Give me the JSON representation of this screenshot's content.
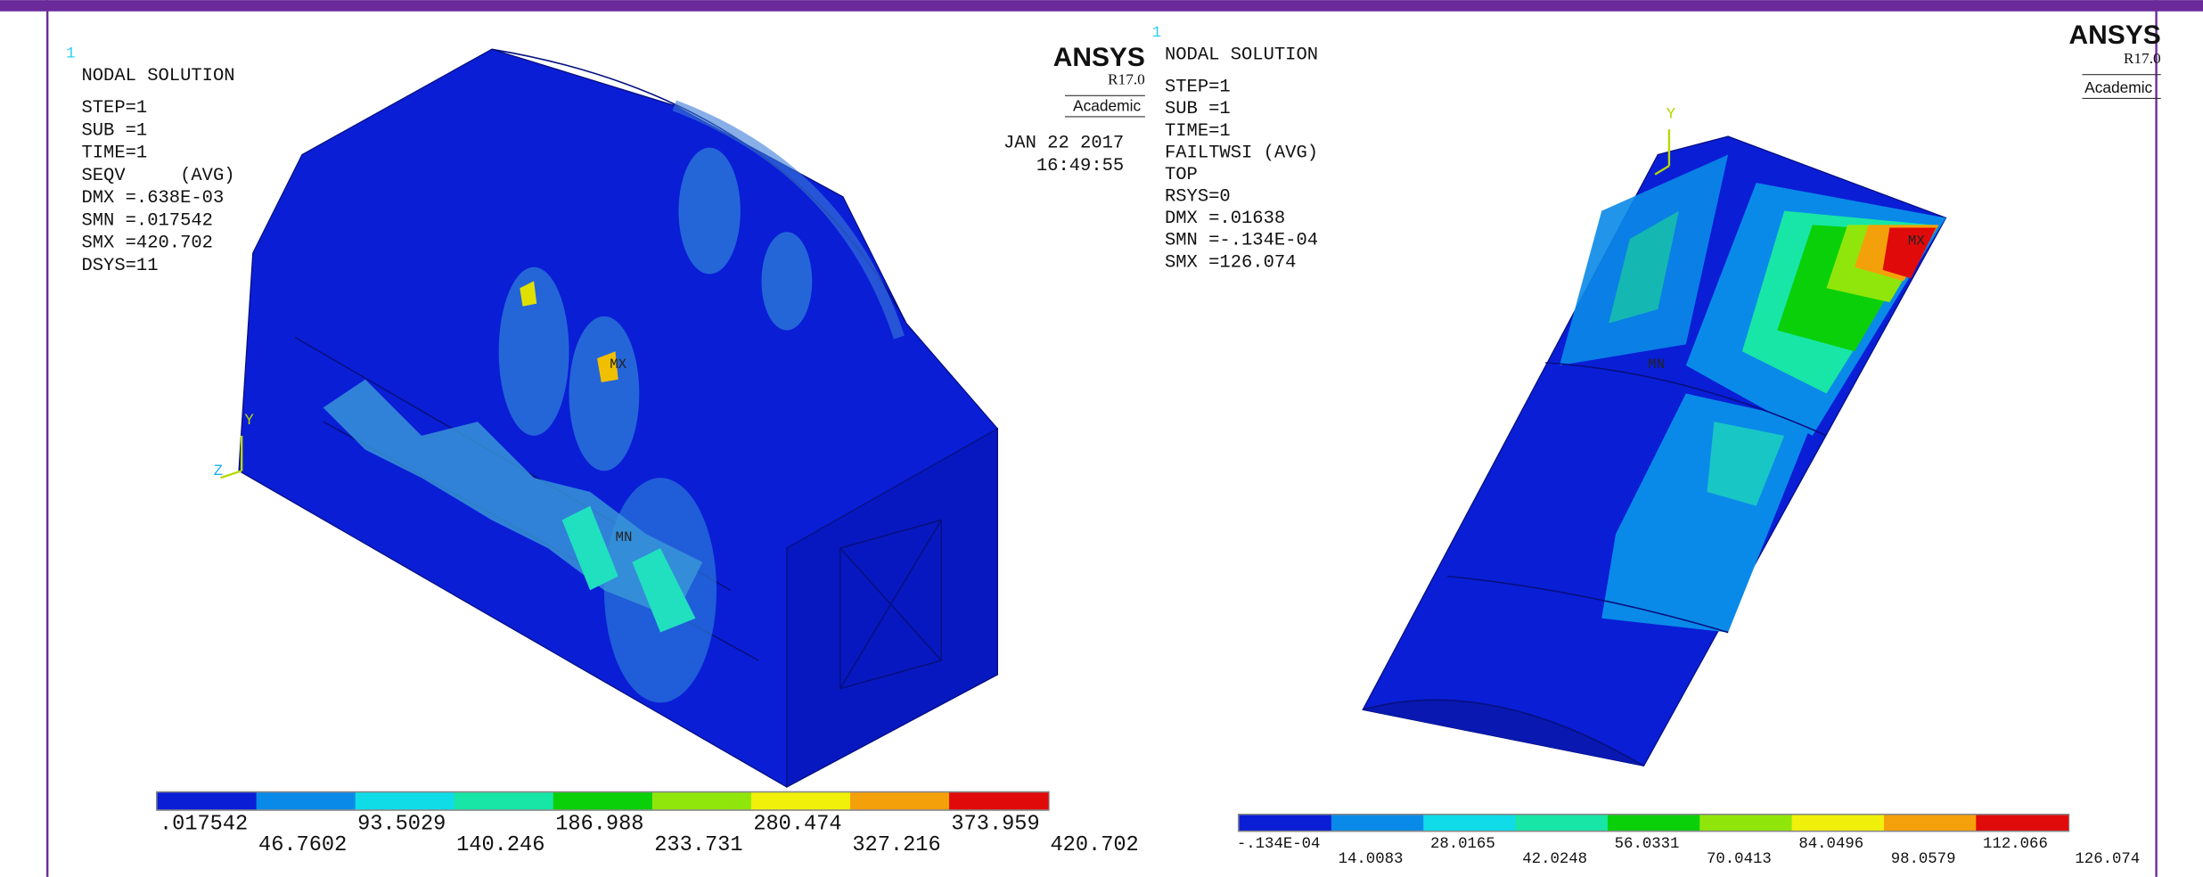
{
  "left_panel": {
    "marker": "1",
    "title": "NODAL SOLUTION",
    "lines": [
      "STEP=1",
      "SUB =1",
      "TIME=1",
      "SEQV     (AVG)",
      "DMX =.638E-03",
      "SMN =.017542",
      "SMX =420.702",
      "DSYS=11"
    ],
    "logo": {
      "name": "ANSYS",
      "version": "R17.0",
      "license": "Academic"
    },
    "date": "JAN 22 2017",
    "time": "16:49:55",
    "model_labels": {
      "max": "MX",
      "min": "MN",
      "y_axis": "Y",
      "z_axis": "Z"
    },
    "legend": {
      "colors": [
        "#0a1ed6",
        "#0a8ae8",
        "#10dce8",
        "#18e6a6",
        "#0ad00a",
        "#90e60a",
        "#f0f00a",
        "#f4a00a",
        "#e00a0a"
      ],
      "labels": [
        ".017542",
        "46.7602",
        "93.5029",
        "140.246",
        "186.988",
        "233.731",
        "280.474",
        "327.216",
        "373.959",
        "420.702"
      ]
    }
  },
  "right_panel": {
    "marker": "1",
    "title": "NODAL SOLUTION",
    "lines": [
      "STEP=1",
      "SUB =1",
      "TIME=1",
      "FAILTWSI (AVG)",
      "TOP",
      "RSYS=0",
      "DMX =.01638",
      "SMN =-.134E-04",
      "SMX =126.074"
    ],
    "logo": {
      "name": "ANSYS",
      "version": "R17.0",
      "license": "Academic"
    },
    "model_labels": {
      "max": "MX",
      "min": "MN",
      "y_axis": "Y"
    },
    "legend": {
      "colors": [
        "#0a1ed6",
        "#0a8ae8",
        "#10dce8",
        "#18e6a6",
        "#0ad00a",
        "#90e60a",
        "#f0f00a",
        "#f4a00a",
        "#e00a0a"
      ],
      "labels": [
        "-.134E-04",
        "14.0083",
        "28.0165",
        "42.0248",
        "56.0331",
        "70.0413",
        "84.0496",
        "98.0579",
        "112.066",
        "126.074"
      ]
    }
  }
}
